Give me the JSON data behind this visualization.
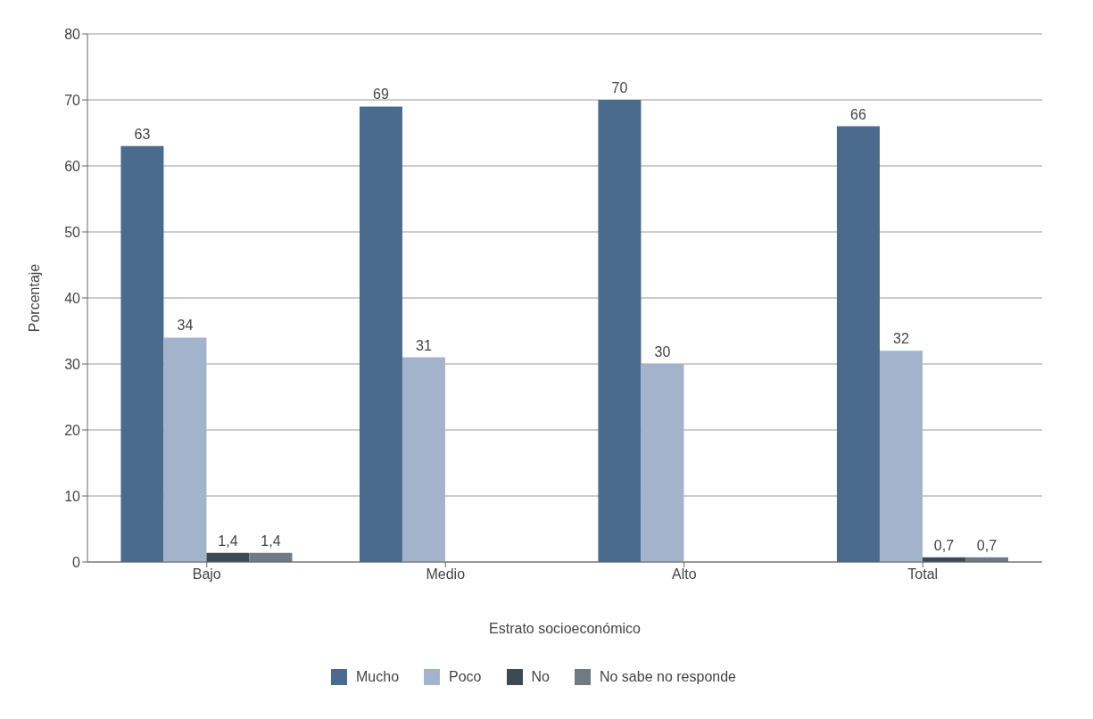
{
  "chart_data": {
    "type": "bar",
    "xlabel": "Estrato socioeconómico",
    "ylabel": "Porcentaje",
    "categories": [
      "Bajo",
      "Medio",
      "Alto",
      "Total"
    ],
    "series": [
      {
        "name": "Mucho",
        "color": "#4a6a8e",
        "values": [
          63,
          69,
          70,
          66
        ],
        "value_labels": [
          "63",
          "69",
          "70",
          "66"
        ]
      },
      {
        "name": "Poco",
        "color": "#a3b3cc",
        "values": [
          34,
          31,
          30,
          32
        ],
        "value_labels": [
          "34",
          "31",
          "30",
          "32"
        ]
      },
      {
        "name": "No",
        "color": "#3d4a56",
        "values": [
          1.4,
          null,
          null,
          0.7
        ],
        "value_labels": [
          "1,4",
          null,
          null,
          "0,7"
        ]
      },
      {
        "name": "No sabe no responde",
        "color": "#6f7a84",
        "values": [
          1.4,
          null,
          null,
          0.7
        ],
        "value_labels": [
          "1,4",
          null,
          null,
          "0,7"
        ]
      }
    ],
    "ylim": [
      0,
      80
    ],
    "yticks": [
      0,
      10,
      20,
      30,
      40,
      50,
      60,
      70,
      80
    ],
    "grid": "y",
    "legend": "bottom"
  }
}
